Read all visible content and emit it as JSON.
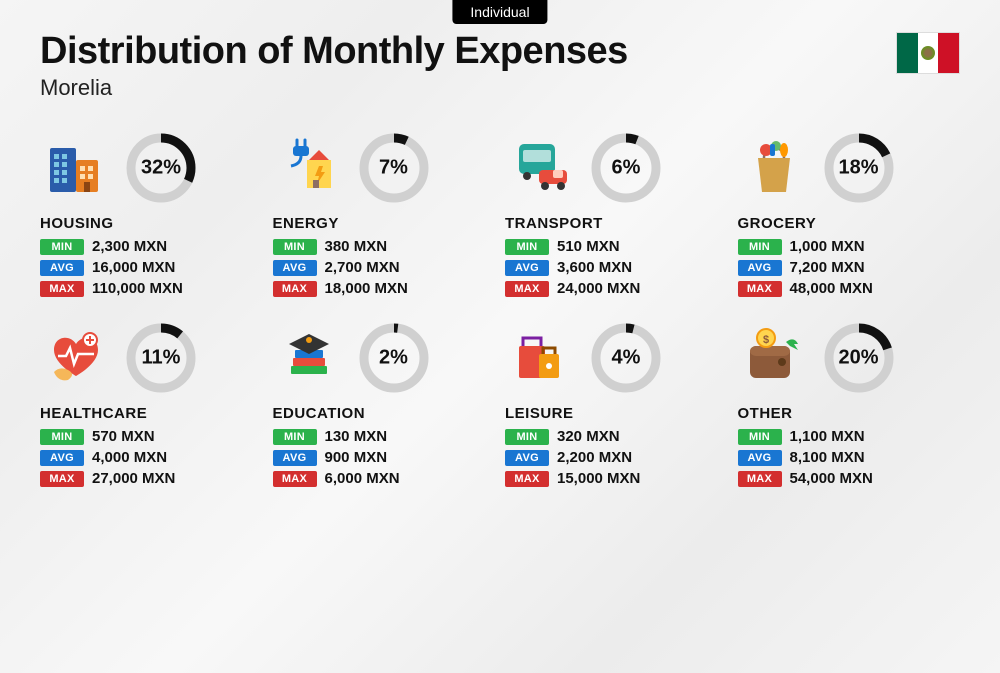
{
  "tab_label": "Individual",
  "title": "Distribution of Monthly Expenses",
  "subtitle": "Morelia",
  "flag": {
    "country": "Mexico",
    "stripes": [
      "#006847",
      "#ffffff",
      "#ce1126"
    ]
  },
  "donut": {
    "radius": 30,
    "stroke_width": 9,
    "bg_color": "#d0d0d0",
    "fg_color": "#111111"
  },
  "badges": {
    "min": {
      "label": "MIN",
      "bg": "#2bb24c"
    },
    "avg": {
      "label": "AVG",
      "bg": "#1976d2"
    },
    "max": {
      "label": "MAX",
      "bg": "#d32f2f"
    }
  },
  "currency_suffix": "MXN",
  "categories": [
    {
      "key": "housing",
      "name": "HOUSING",
      "icon": "housing-icon",
      "percent": 32,
      "min": "2,300 MXN",
      "avg": "16,000 MXN",
      "max": "110,000 MXN"
    },
    {
      "key": "energy",
      "name": "ENERGY",
      "icon": "energy-icon",
      "percent": 7,
      "min": "380 MXN",
      "avg": "2,700 MXN",
      "max": "18,000 MXN"
    },
    {
      "key": "transport",
      "name": "TRANSPORT",
      "icon": "transport-icon",
      "percent": 6,
      "min": "510 MXN",
      "avg": "3,600 MXN",
      "max": "24,000 MXN"
    },
    {
      "key": "grocery",
      "name": "GROCERY",
      "icon": "grocery-icon",
      "percent": 18,
      "min": "1,000 MXN",
      "avg": "7,200 MXN",
      "max": "48,000 MXN"
    },
    {
      "key": "healthcare",
      "name": "HEALTHCARE",
      "icon": "healthcare-icon",
      "percent": 11,
      "min": "570 MXN",
      "avg": "4,000 MXN",
      "max": "27,000 MXN"
    },
    {
      "key": "education",
      "name": "EDUCATION",
      "icon": "education-icon",
      "percent": 2,
      "min": "130 MXN",
      "avg": "900 MXN",
      "max": "6,000 MXN"
    },
    {
      "key": "leisure",
      "name": "LEISURE",
      "icon": "leisure-icon",
      "percent": 4,
      "min": "320 MXN",
      "avg": "2,200 MXN",
      "max": "15,000 MXN"
    },
    {
      "key": "other",
      "name": "OTHER",
      "icon": "other-icon",
      "percent": 20,
      "min": "1,100 MXN",
      "avg": "8,100 MXN",
      "max": "54,000 MXN"
    }
  ]
}
